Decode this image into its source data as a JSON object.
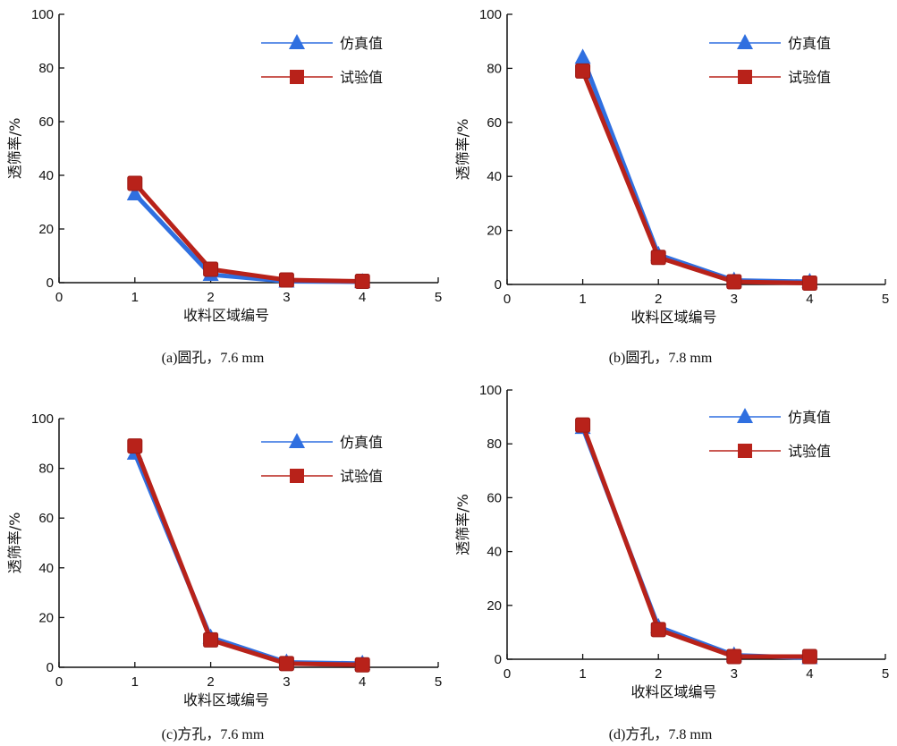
{
  "chart_data": [
    {
      "type": "line",
      "caption": "(a)圆孔，7.6 mm",
      "xlabel": "收料区域编号",
      "ylabel": "透筛率/%",
      "xlim": [
        0,
        5
      ],
      "ylim": [
        0,
        100
      ],
      "xticks": [
        0,
        1,
        2,
        3,
        4,
        5
      ],
      "yticks": [
        0,
        20,
        40,
        60,
        80,
        100
      ],
      "legend": "top-right",
      "grid": false,
      "x": [
        1,
        2,
        3,
        4
      ],
      "series": [
        {
          "name": "仿真值",
          "values": [
            33,
            3,
            0.5,
            0.3
          ],
          "color": "#2f6fe0",
          "marker": "triangle"
        },
        {
          "name": "试验值",
          "values": [
            37,
            5,
            1,
            0.5
          ],
          "color": "#b8221a",
          "marker": "square"
        }
      ]
    },
    {
      "type": "line",
      "caption": "(b)圆孔，7.8 mm",
      "xlabel": "收料区域编号",
      "ylabel": "透筛率/%",
      "xlim": [
        0,
        5
      ],
      "ylim": [
        0,
        100
      ],
      "xticks": [
        0,
        1,
        2,
        3,
        4,
        5
      ],
      "yticks": [
        0,
        20,
        40,
        60,
        80,
        100
      ],
      "legend": "top-right",
      "grid": false,
      "x": [
        1,
        2,
        3,
        4
      ],
      "series": [
        {
          "name": "仿真值",
          "values": [
            84,
            11,
            1.5,
            1
          ],
          "color": "#2f6fe0",
          "marker": "triangle"
        },
        {
          "name": "试验值",
          "values": [
            79,
            10,
            1,
            0.5
          ],
          "color": "#b8221a",
          "marker": "square"
        }
      ]
    },
    {
      "type": "line",
      "caption": "(c)方孔，7.6 mm",
      "xlabel": "收料区域编号",
      "ylabel": "透筛率/%",
      "xlim": [
        0,
        5
      ],
      "ylim": [
        0,
        100
      ],
      "xticks": [
        0,
        1,
        2,
        3,
        4,
        5
      ],
      "yticks": [
        0,
        20,
        40,
        60,
        80,
        100
      ],
      "legend": "top-right",
      "grid": false,
      "x": [
        1,
        2,
        3,
        4
      ],
      "series": [
        {
          "name": "仿真值",
          "values": [
            86,
            12,
            2,
            1.5
          ],
          "color": "#2f6fe0",
          "marker": "triangle"
        },
        {
          "name": "试验值",
          "values": [
            89,
            11,
            1.5,
            1
          ],
          "color": "#b8221a",
          "marker": "square"
        }
      ]
    },
    {
      "type": "line",
      "caption": "(d)方孔，7.8 mm",
      "xlabel": "收料区域编号",
      "ylabel": "透筛率/%",
      "xlim": [
        0,
        5
      ],
      "ylim": [
        0,
        100
      ],
      "xticks": [
        0,
        1,
        2,
        3,
        4,
        5
      ],
      "yticks": [
        0,
        20,
        40,
        60,
        80,
        100
      ],
      "legend": "top-right",
      "grid": false,
      "x": [
        1,
        2,
        3,
        4
      ],
      "series": [
        {
          "name": "仿真值",
          "values": [
            86,
            12,
            1.5,
            0.5
          ],
          "color": "#2f6fe0",
          "marker": "triangle"
        },
        {
          "name": "试验值",
          "values": [
            87,
            11,
            1,
            1
          ],
          "color": "#b8221a",
          "marker": "square"
        }
      ]
    }
  ]
}
